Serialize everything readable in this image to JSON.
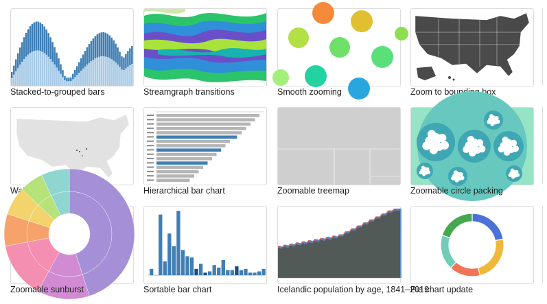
{
  "gallery": {
    "items": [
      {
        "title": "Stacked-to-grouped bars"
      },
      {
        "title": "Streamgraph transitions"
      },
      {
        "title": "Smooth zooming"
      },
      {
        "title": "Zoom to bounding box"
      },
      {
        "title": "Walmart's growth"
      },
      {
        "title": "Hierarchical bar chart"
      },
      {
        "title": "Zoomable treemap"
      },
      {
        "title": "Zoomable circle packing"
      },
      {
        "title": "Zoomable sunburst"
      },
      {
        "title": "Sortable bar chart"
      },
      {
        "title": "Icelandic population by age, 1841–2019"
      },
      {
        "title": "Pie chart update"
      }
    ]
  },
  "colors": {
    "blue_dark": "#3f7fb5",
    "blue_light": "#a9cbe6",
    "map_dark": "#4a4a4a",
    "map_light": "#e2e2e2",
    "pack_bg": "#97e3c6",
    "pack_mid": "#3ea7b3",
    "pie": [
      "#4a72d8",
      "#f0b83a",
      "#f07455",
      "#6fcdb8",
      "#45a84f"
    ]
  }
}
